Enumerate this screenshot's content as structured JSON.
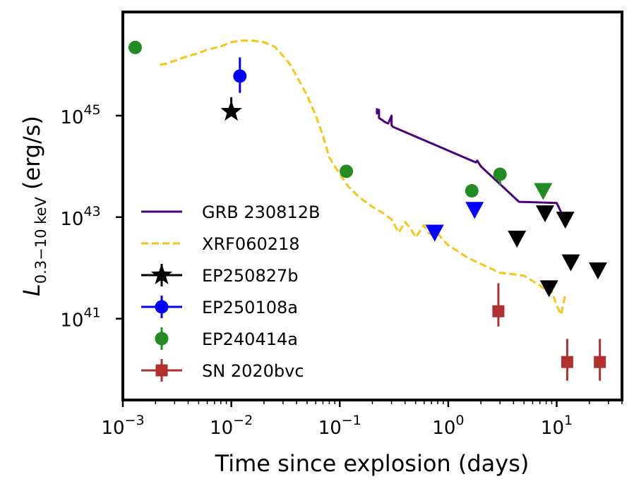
{
  "chart_data": {
    "type": "scatter",
    "xlabel": "Time since explosion (days)",
    "ylabel": "L_{0.3-10keV} (erg/s)",
    "ylabel_parts": {
      "main": "L",
      "sub": "0.3−10 keV",
      "unit": " (erg/s)"
    },
    "xscale": "log",
    "yscale": "log",
    "xlim": [
      0.001,
      40
    ],
    "ylim": [
      2.5e+39,
      1.1e+47
    ],
    "x_ticks": [
      {
        "value": 0.001,
        "base": "10",
        "exp": "−3"
      },
      {
        "value": 0.01,
        "base": "10",
        "exp": "−2"
      },
      {
        "value": 0.1,
        "base": "10",
        "exp": "−1"
      },
      {
        "value": 1,
        "base": "10",
        "exp": "0"
      },
      {
        "value": 10,
        "base": "10",
        "exp": "1"
      }
    ],
    "y_ticks": [
      {
        "value": 1e+41,
        "base": "10",
        "exp": "41"
      },
      {
        "value": 1e+43,
        "base": "10",
        "exp": "43"
      },
      {
        "value": 1e+45,
        "base": "10",
        "exp": "45"
      }
    ],
    "legend_position": "lower-left",
    "series": [
      {
        "name": "GRB 230812B",
        "kind": "line",
        "style": "solid",
        "color": "#4b0082",
        "x": [
          0.22,
          0.22,
          0.23,
          0.23,
          0.25,
          0.26,
          0.28,
          0.3,
          0.3,
          0.31,
          1.8,
          1.85,
          2.0,
          4.5,
          10.0,
          12.5
        ],
        "y": [
          1.4e+45,
          1.1e+45,
          1.3e+45,
          9e+44,
          8e+44,
          7.5e+44,
          7e+44,
          1e+45,
          6.5e+44,
          6e+44,
          1.2e+44,
          1.3e+44,
          1e+44,
          2e+43,
          1.9e+43,
          7e+42
        ]
      },
      {
        "name": "XRF060218",
        "kind": "line",
        "style": "dashed",
        "color": "#f5c518",
        "x": [
          0.0022,
          0.0025,
          0.003,
          0.004,
          0.005,
          0.006,
          0.008,
          0.01,
          0.012,
          0.016,
          0.02,
          0.025,
          0.03,
          0.035,
          0.04,
          0.05,
          0.06,
          0.07,
          0.08,
          0.1,
          0.12,
          0.15,
          0.2,
          0.25,
          0.3,
          0.35,
          0.4,
          0.45,
          0.5,
          0.6,
          0.65,
          0.7,
          0.8,
          0.9,
          1.0,
          1.2,
          1.5,
          2.0,
          3.0,
          4.0,
          5.0,
          6.0,
          7.0,
          7.5,
          8.0,
          9.0,
          10.0,
          11.0,
          12.0
        ],
        "y": [
          1e+46,
          1.05e+46,
          1.2e+46,
          1.5e+46,
          1.7e+46,
          2e+46,
          2.3e+46,
          2.8e+46,
          3e+46,
          3e+46,
          2.8e+46,
          2.3e+46,
          1.5e+46,
          1e+46,
          6e+45,
          2.5e+45,
          1e+45,
          4e+44,
          1.5e+44,
          7e+43,
          4e+43,
          2.5e+43,
          1.6e+43,
          1.2e+43,
          9e+42,
          5e+42,
          8e+42,
          6e+42,
          4e+42,
          7e+42,
          5e+42,
          4.5e+42,
          4.8e+42,
          3.5e+42,
          2.8e+42,
          2.2e+42,
          1.6e+42,
          1.2e+42,
          8e+41,
          7.5e+41,
          7e+41,
          5.5e+41,
          4.5e+41,
          4e+41,
          4.2e+41,
          3.5e+41,
          1.8e+41,
          1.2e+41,
          3e+41
        ]
      },
      {
        "name": "EP250827b",
        "kind": "points",
        "marker": "star",
        "color": "#000000",
        "points": [
          {
            "x": 0.01,
            "y": 1.2e+45,
            "yerr_hi": 2.3e+45
          }
        ]
      },
      {
        "name": "EP250108a",
        "kind": "points",
        "marker": "circle",
        "color": "#0000ff",
        "points": [
          {
            "x": 0.012,
            "y": 6e+45,
            "yerr_hi": 1.4e+46,
            "yerr_lo": 2.8e+45
          }
        ]
      },
      {
        "name": "EP240414a",
        "kind": "points",
        "marker": "circle",
        "color": "#228b22",
        "points": [
          {
            "x": 0.0013,
            "y": 2.2e+46
          },
          {
            "x": 0.115,
            "y": 8e+43
          },
          {
            "x": 1.65,
            "y": 3.3e+43
          },
          {
            "x": 3.0,
            "y": 7e+43,
            "yerr_hi": 9e+43,
            "yerr_lo": 4.2e+43
          }
        ]
      },
      {
        "name": "SN 2020bvc",
        "kind": "points",
        "marker": "square",
        "color": "#b03030",
        "points": [
          {
            "x": 2.9,
            "y": 1.4e+41,
            "yerr_hi": 5e+41,
            "yerr_lo": 7e+40
          },
          {
            "x": 12.5,
            "y": 1.4e+40,
            "yerr_hi": 4e+40,
            "yerr_lo": 6e+39
          },
          {
            "x": 25.0,
            "y": 1.4e+40,
            "yerr_hi": 4e+40,
            "yerr_lo": 6e+39
          }
        ]
      }
    ],
    "upper_limits": [
      {
        "color": "#0000ff",
        "points": [
          {
            "x": 0.75,
            "y": 5e+42
          },
          {
            "x": 1.75,
            "y": 1.4e+43
          }
        ]
      },
      {
        "color": "#228b22",
        "points": [
          {
            "x": 7.5,
            "y": 3.3e+43
          }
        ]
      },
      {
        "color": "#000000",
        "points": [
          {
            "x": 4.3,
            "y": 3.8e+42
          },
          {
            "x": 7.8,
            "y": 1.2e+43
          },
          {
            "x": 12.0,
            "y": 9e+42
          },
          {
            "x": 8.5,
            "y": 4e+41
          },
          {
            "x": 13.5,
            "y": 1.3e+42
          },
          {
            "x": 24.0,
            "y": 9e+41
          }
        ]
      }
    ]
  }
}
